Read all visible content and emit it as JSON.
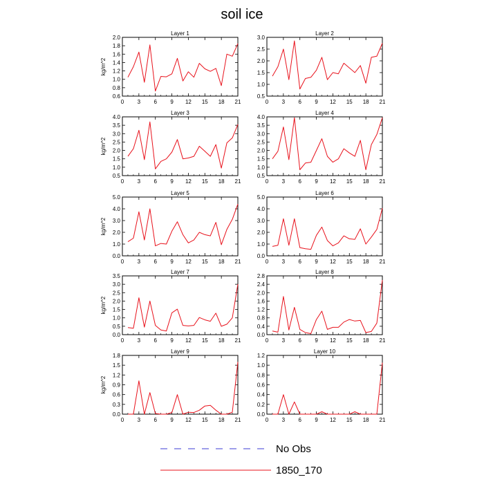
{
  "figure": {
    "title": "soil ice"
  },
  "legend": {
    "entries": [
      {
        "label": "No Obs",
        "color": "#3b3bd6",
        "style": "dashed"
      },
      {
        "label": "1850_170",
        "color": "#e8101a",
        "style": "solid"
      }
    ]
  },
  "chart_data": [
    {
      "type": "line",
      "title": "Layer 1",
      "ylabel": "kg/m^2",
      "xlim": [
        0,
        21
      ],
      "ylim": [
        0.6,
        2.0
      ],
      "xticks": [
        0,
        3,
        6,
        9,
        12,
        15,
        18,
        21
      ],
      "yticks": [
        0.6,
        0.8,
        1.0,
        1.2,
        1.4,
        1.6,
        1.8,
        2.0
      ],
      "ytick_labels": [
        "0.6",
        "0.8",
        "1.0",
        "1.2",
        "1.4",
        "1.6",
        "1.8",
        "2.0"
      ],
      "x": [
        1,
        2,
        3,
        4,
        5,
        6,
        7,
        8,
        9,
        10,
        11,
        12,
        13,
        14,
        15,
        16,
        17,
        18,
        19,
        20,
        21
      ],
      "series": [
        {
          "name": "1850_170",
          "color": "#e8101a",
          "values": [
            1.05,
            1.3,
            1.65,
            0.93,
            1.82,
            0.72,
            1.07,
            1.06,
            1.13,
            1.5,
            0.96,
            1.18,
            1.05,
            1.38,
            1.25,
            1.19,
            1.26,
            0.85,
            1.6,
            1.55,
            1.85
          ]
        }
      ]
    },
    {
      "type": "line",
      "title": "Layer 2",
      "ylabel": "",
      "xlim": [
        0,
        21
      ],
      "ylim": [
        0.5,
        3.0
      ],
      "xticks": [
        0,
        3,
        6,
        9,
        12,
        15,
        18,
        21
      ],
      "yticks": [
        0.5,
        1.0,
        1.5,
        2.0,
        2.5,
        3.0
      ],
      "ytick_labels": [
        "0.5",
        "1.0",
        "1.5",
        "2.0",
        "2.5",
        "3.0"
      ],
      "x": [
        1,
        2,
        3,
        4,
        5,
        6,
        7,
        8,
        9,
        10,
        11,
        12,
        13,
        14,
        15,
        16,
        17,
        18,
        19,
        20,
        21
      ],
      "series": [
        {
          "name": "1850_170",
          "color": "#e8101a",
          "values": [
            1.35,
            1.75,
            2.5,
            1.2,
            2.85,
            0.8,
            1.25,
            1.3,
            1.6,
            2.15,
            1.2,
            1.5,
            1.45,
            1.9,
            1.7,
            1.5,
            1.8,
            1.05,
            2.15,
            2.2,
            2.75
          ]
        }
      ]
    },
    {
      "type": "line",
      "title": "Layer 3",
      "ylabel": "kg/m^2",
      "xlim": [
        0,
        21
      ],
      "ylim": [
        0.5,
        4.0
      ],
      "xticks": [
        0,
        3,
        6,
        9,
        12,
        15,
        18,
        21
      ],
      "yticks": [
        0.5,
        1.0,
        1.5,
        2.0,
        2.5,
        3.0,
        3.5,
        4.0
      ],
      "ytick_labels": [
        "0.5",
        "1.0",
        "1.5",
        "2.0",
        "2.5",
        "3.0",
        "3.5",
        "4.0"
      ],
      "x": [
        1,
        2,
        3,
        4,
        5,
        6,
        7,
        8,
        9,
        10,
        11,
        12,
        13,
        14,
        15,
        16,
        17,
        18,
        19,
        20,
        21
      ],
      "series": [
        {
          "name": "1850_170",
          "color": "#e8101a",
          "values": [
            1.65,
            2.1,
            3.2,
            1.45,
            3.7,
            0.9,
            1.35,
            1.5,
            1.9,
            2.65,
            1.5,
            1.55,
            1.65,
            2.25,
            1.95,
            1.65,
            2.35,
            0.95,
            2.45,
            2.75,
            3.55
          ]
        }
      ]
    },
    {
      "type": "line",
      "title": "Layer 4",
      "ylabel": "",
      "xlim": [
        0,
        21
      ],
      "ylim": [
        0.5,
        4.0
      ],
      "xticks": [
        0,
        3,
        6,
        9,
        12,
        15,
        18,
        21
      ],
      "yticks": [
        0.5,
        1.0,
        1.5,
        2.0,
        2.5,
        3.0,
        3.5,
        4.0
      ],
      "ytick_labels": [
        "0.5",
        "1.0",
        "1.5",
        "2.0",
        "2.5",
        "3.0",
        "3.5",
        "4.0"
      ],
      "x": [
        1,
        2,
        3,
        4,
        5,
        6,
        7,
        8,
        9,
        10,
        11,
        12,
        13,
        14,
        15,
        16,
        17,
        18,
        19,
        20,
        21
      ],
      "series": [
        {
          "name": "1850_170",
          "color": "#e8101a",
          "values": [
            1.5,
            1.95,
            3.4,
            1.45,
            3.95,
            0.85,
            1.25,
            1.3,
            2.0,
            2.7,
            1.65,
            1.3,
            1.5,
            2.1,
            1.85,
            1.65,
            2.6,
            0.85,
            2.35,
            2.95,
            3.95
          ]
        }
      ]
    },
    {
      "type": "line",
      "title": "Layer 5",
      "ylabel": "kg/m^2",
      "xlim": [
        0,
        21
      ],
      "ylim": [
        0.0,
        5.0
      ],
      "xticks": [
        0,
        3,
        6,
        9,
        12,
        15,
        18,
        21
      ],
      "yticks": [
        0.0,
        1.0,
        2.0,
        3.0,
        4.0,
        5.0
      ],
      "ytick_labels": [
        "0.0",
        "1.0",
        "2.0",
        "3.0",
        "4.0",
        "5.0"
      ],
      "x": [
        1,
        2,
        3,
        4,
        5,
        6,
        7,
        8,
        9,
        10,
        11,
        12,
        13,
        14,
        15,
        16,
        17,
        18,
        19,
        20,
        21
      ],
      "series": [
        {
          "name": "1850_170",
          "color": "#e8101a",
          "values": [
            1.2,
            1.5,
            3.75,
            1.35,
            4.0,
            0.85,
            1.05,
            1.0,
            2.1,
            2.9,
            1.8,
            1.1,
            1.35,
            2.0,
            1.8,
            1.7,
            2.85,
            0.95,
            2.25,
            3.1,
            4.4
          ]
        }
      ]
    },
    {
      "type": "line",
      "title": "Layer 6",
      "ylabel": "",
      "xlim": [
        0,
        21
      ],
      "ylim": [
        0.0,
        5.0
      ],
      "xticks": [
        0,
        3,
        6,
        9,
        12,
        15,
        18,
        21
      ],
      "yticks": [
        0.0,
        1.0,
        2.0,
        3.0,
        4.0,
        5.0
      ],
      "ytick_labels": [
        "0.0",
        "1.0",
        "2.0",
        "3.0",
        "4.0",
        "5.0"
      ],
      "x": [
        1,
        2,
        3,
        4,
        5,
        6,
        7,
        8,
        9,
        10,
        11,
        12,
        13,
        14,
        15,
        16,
        17,
        18,
        19,
        20,
        21
      ],
      "series": [
        {
          "name": "1850_170",
          "color": "#e8101a",
          "values": [
            0.8,
            0.9,
            3.15,
            0.9,
            3.15,
            0.7,
            0.6,
            0.55,
            1.75,
            2.45,
            1.3,
            0.85,
            1.1,
            1.7,
            1.45,
            1.4,
            2.3,
            1.0,
            1.6,
            2.25,
            4.05
          ]
        }
      ]
    },
    {
      "type": "line",
      "title": "Layer 7",
      "ylabel": "kg/m^2",
      "xlim": [
        0,
        21
      ],
      "ylim": [
        0.0,
        3.5
      ],
      "xticks": [
        0,
        3,
        6,
        9,
        12,
        15,
        18,
        21
      ],
      "yticks": [
        0.0,
        0.5,
        1.0,
        1.5,
        2.0,
        2.5,
        3.0,
        3.5
      ],
      "ytick_labels": [
        "0.0",
        "0.5",
        "1.0",
        "1.5",
        "2.0",
        "2.5",
        "3.0",
        "3.5"
      ],
      "x": [
        1,
        2,
        3,
        4,
        5,
        6,
        7,
        8,
        9,
        10,
        11,
        12,
        13,
        14,
        15,
        16,
        17,
        18,
        19,
        20,
        21
      ],
      "series": [
        {
          "name": "1850_170",
          "color": "#e8101a",
          "values": [
            0.42,
            0.38,
            2.2,
            0.45,
            2.0,
            0.55,
            0.28,
            0.22,
            1.3,
            1.52,
            0.55,
            0.52,
            0.55,
            1.02,
            0.88,
            0.8,
            1.28,
            0.5,
            0.62,
            1.0,
            3.0
          ]
        }
      ]
    },
    {
      "type": "line",
      "title": "Layer 8",
      "ylabel": "",
      "xlim": [
        0,
        21
      ],
      "ylim": [
        0.0,
        2.8
      ],
      "xticks": [
        0,
        3,
        6,
        9,
        12,
        15,
        18,
        21
      ],
      "yticks": [
        0.0,
        0.4,
        0.8,
        1.2,
        1.6,
        2.0,
        2.4,
        2.8
      ],
      "ytick_labels": [
        "0.0",
        "0.4",
        "0.8",
        "1.2",
        "1.6",
        "2.0",
        "2.4",
        "2.8"
      ],
      "x": [
        1,
        2,
        3,
        4,
        5,
        6,
        7,
        8,
        9,
        10,
        11,
        12,
        13,
        14,
        15,
        16,
        17,
        18,
        19,
        20,
        21
      ],
      "series": [
        {
          "name": "1850_170",
          "color": "#e8101a",
          "values": [
            0.17,
            0.12,
            1.82,
            0.22,
            1.3,
            0.25,
            0.1,
            0.05,
            0.72,
            1.12,
            0.25,
            0.35,
            0.35,
            0.6,
            0.72,
            0.65,
            0.68,
            0.1,
            0.15,
            0.55,
            2.6
          ]
        }
      ]
    },
    {
      "type": "line",
      "title": "Layer 9",
      "ylabel": "kg/m^2",
      "xlim": [
        0,
        21
      ],
      "ylim": [
        0.0,
        1.8
      ],
      "xticks": [
        0,
        3,
        6,
        9,
        12,
        15,
        18,
        21
      ],
      "yticks": [
        0.0,
        0.3,
        0.6,
        0.9,
        1.2,
        1.5,
        1.8
      ],
      "ytick_labels": [
        "0.0",
        "0.3",
        "0.6",
        "0.9",
        "1.2",
        "1.5",
        "1.8"
      ],
      "x": [
        1,
        2,
        3,
        4,
        5,
        6,
        7,
        8,
        9,
        10,
        11,
        12,
        13,
        14,
        15,
        16,
        17,
        18,
        19,
        20,
        21
      ],
      "series": [
        {
          "name": "1850_170",
          "color": "#e8101a",
          "values": [
            0.0,
            0.0,
            1.02,
            0.0,
            0.66,
            0.02,
            0.0,
            0.0,
            0.05,
            0.6,
            0.0,
            0.06,
            0.05,
            0.12,
            0.25,
            0.27,
            0.12,
            0.0,
            0.0,
            0.06,
            1.6
          ]
        }
      ]
    },
    {
      "type": "line",
      "title": "Layer 10",
      "ylabel": "",
      "xlim": [
        0,
        21
      ],
      "ylim": [
        0.0,
        1.2
      ],
      "xticks": [
        0,
        3,
        6,
        9,
        12,
        15,
        18,
        21
      ],
      "yticks": [
        0.0,
        0.2,
        0.4,
        0.6,
        0.8,
        1.0,
        1.2
      ],
      "ytick_labels": [
        "0.0",
        "0.2",
        "0.4",
        "0.6",
        "0.8",
        "1.0",
        "1.2"
      ],
      "x": [
        1,
        2,
        3,
        4,
        5,
        6,
        7,
        8,
        9,
        10,
        11,
        12,
        13,
        14,
        15,
        16,
        17,
        18,
        19,
        20,
        21
      ],
      "series": [
        {
          "name": "1850_170",
          "color": "#e8101a",
          "values": [
            0.0,
            0.0,
            0.4,
            0.0,
            0.25,
            0.0,
            0.0,
            0.0,
            0.0,
            0.05,
            0.0,
            0.0,
            0.0,
            0.0,
            0.0,
            0.05,
            0.0,
            0.0,
            0.0,
            0.0,
            1.05
          ]
        }
      ]
    }
  ]
}
